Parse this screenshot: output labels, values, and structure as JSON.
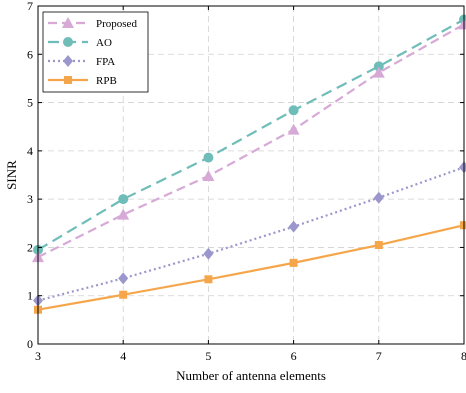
{
  "chart_data": {
    "type": "line",
    "title": "",
    "xlabel": "Number of antenna elements",
    "ylabel": "SINR",
    "xlim": [
      3,
      8
    ],
    "ylim": [
      0,
      7
    ],
    "xticks": [
      3,
      4,
      5,
      6,
      7,
      8
    ],
    "yticks": [
      0,
      1,
      2,
      3,
      4,
      5,
      6,
      7
    ],
    "grid": true,
    "legend_position": "top-left",
    "series": [
      {
        "name": "Proposed",
        "color": "#d6a9d6",
        "dash": "9,5",
        "marker": "triangle",
        "x": [
          3,
          4,
          5,
          6,
          7,
          8
        ],
        "y": [
          1.8,
          2.68,
          3.48,
          4.44,
          5.62,
          6.62
        ]
      },
      {
        "name": "AO",
        "color": "#6fbdb8",
        "dash": "11,6",
        "marker": "circle",
        "x": [
          3,
          4,
          5,
          6,
          7,
          8
        ],
        "y": [
          1.95,
          3.0,
          3.86,
          4.84,
          5.75,
          6.72
        ]
      },
      {
        "name": "FPA",
        "color": "#9b97cc",
        "dash": "2,3",
        "marker": "diamond",
        "x": [
          3,
          4,
          5,
          6,
          7,
          8
        ],
        "y": [
          0.9,
          1.36,
          1.87,
          2.43,
          3.03,
          3.66
        ]
      },
      {
        "name": "RPB",
        "color": "#f5a64a",
        "dash": "",
        "marker": "square",
        "x": [
          3,
          4,
          5,
          6,
          7,
          8
        ],
        "y": [
          0.71,
          1.02,
          1.34,
          1.68,
          2.05,
          2.46
        ]
      }
    ]
  }
}
